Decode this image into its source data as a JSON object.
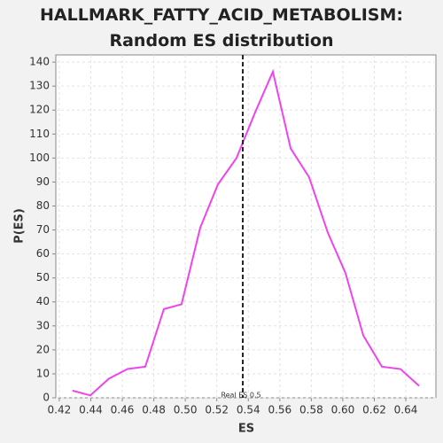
{
  "chart_data": {
    "type": "line",
    "title": "HALLMARK_FATTY_ACID_METABOLISM: Random ES distribution",
    "x_label": "ES",
    "y_label": "P(ES)",
    "x": [
      0.4284,
      0.4397,
      0.4515,
      0.4633,
      0.4746,
      0.4864,
      0.4976,
      0.5095,
      0.5207,
      0.5325,
      0.5443,
      0.5556,
      0.5669,
      0.5786,
      0.5904,
      0.6017,
      0.613,
      0.6248,
      0.6366,
      0.6484
    ],
    "series": [
      {
        "color": "#ee44ee",
        "values": [
          3,
          1,
          8,
          12,
          13,
          37,
          39,
          71,
          89,
          100,
          119,
          136,
          104,
          92,
          69,
          52,
          26,
          13,
          12,
          5
        ]
      }
    ],
    "xlim": [
      0.4178,
      0.6591
    ],
    "ylim": [
      0,
      143
    ],
    "xticks": [
      0.42,
      0.44,
      0.46,
      0.48,
      {
        "value": 0.5,
        "label": "0.50"
      },
      0.52,
      0.54,
      0.56,
      0.58,
      {
        "value": 0.6,
        "label": "0.60"
      },
      0.62,
      0.64
    ],
    "yticks": [
      0,
      10,
      20,
      30,
      40,
      50,
      60,
      70,
      80,
      90,
      100,
      110,
      120,
      130,
      140
    ],
    "grid": true,
    "real_es": 0.5365,
    "real_es_label": "Real ES 0.5"
  }
}
